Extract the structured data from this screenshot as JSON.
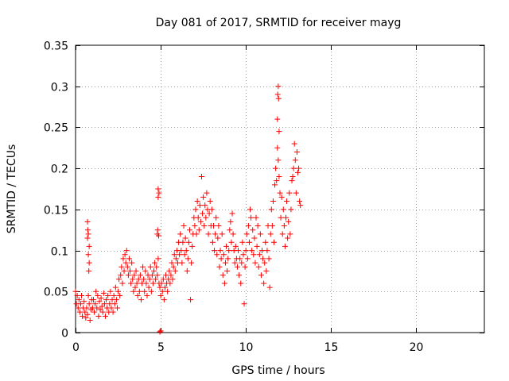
{
  "chart_data": {
    "type": "scatter",
    "title": "Day 081 of 2017, SRMTID for receiver mayg",
    "xlabel": "GPS time / hours",
    "ylabel": "SRMTID / TECUs",
    "xlim": [
      0,
      24
    ],
    "ylim": [
      0,
      0.35
    ],
    "xticks": [
      0,
      5,
      10,
      15,
      20
    ],
    "xtick_labels": [
      "0",
      "5",
      "10",
      "15",
      "20"
    ],
    "yticks": [
      0,
      0.05,
      0.1,
      0.15,
      0.2,
      0.25,
      0.3,
      0.35
    ],
    "ytick_labels": [
      "0",
      "0.05",
      "0.1",
      "0.15",
      "0.2",
      "0.25",
      "0.3",
      "0.35"
    ],
    "grid": true,
    "marker": "plus",
    "color": "#ff0000",
    "series": [
      {
        "name": "SRMTID",
        "points": [
          [
            0.0,
            0.05
          ],
          [
            0.05,
            0.035
          ],
          [
            0.1,
            0.045
          ],
          [
            0.15,
            0.03
          ],
          [
            0.2,
            0.04
          ],
          [
            0.25,
            0.025
          ],
          [
            0.3,
            0.035
          ],
          [
            0.35,
            0.045
          ],
          [
            0.4,
            0.02
          ],
          [
            0.45,
            0.03
          ],
          [
            0.5,
            0.038
          ],
          [
            0.55,
            0.025
          ],
          [
            0.6,
            0.018
          ],
          [
            0.65,
            0.03
          ],
          [
            0.7,
            0.022
          ],
          [
            0.75,
            0.045
          ],
          [
            0.8,
            0.035
          ],
          [
            0.85,
            0.015
          ],
          [
            0.9,
            0.028
          ],
          [
            0.95,
            0.04
          ],
          [
            0.7,
            0.135
          ],
          [
            0.72,
            0.125
          ],
          [
            0.75,
            0.12
          ],
          [
            0.7,
            0.115
          ],
          [
            0.75,
            0.095
          ],
          [
            0.8,
            0.085
          ],
          [
            0.78,
            0.075
          ],
          [
            0.8,
            0.105
          ],
          [
            1.0,
            0.03
          ],
          [
            1.05,
            0.04
          ],
          [
            1.1,
            0.025
          ],
          [
            1.15,
            0.035
          ],
          [
            1.2,
            0.05
          ],
          [
            1.25,
            0.03
          ],
          [
            1.3,
            0.045
          ],
          [
            1.35,
            0.02
          ],
          [
            1.4,
            0.038
          ],
          [
            1.45,
            0.028
          ],
          [
            1.5,
            0.042
          ],
          [
            1.55,
            0.032
          ],
          [
            1.6,
            0.025
          ],
          [
            1.65,
            0.048
          ],
          [
            1.7,
            0.035
          ],
          [
            1.75,
            0.02
          ],
          [
            1.8,
            0.04
          ],
          [
            1.85,
            0.03
          ],
          [
            1.9,
            0.045
          ],
          [
            1.95,
            0.025
          ],
          [
            2.0,
            0.035
          ],
          [
            2.05,
            0.05
          ],
          [
            2.1,
            0.03
          ],
          [
            2.15,
            0.04
          ],
          [
            2.2,
            0.025
          ],
          [
            2.25,
            0.045
          ],
          [
            2.3,
            0.035
          ],
          [
            2.35,
            0.055
          ],
          [
            2.4,
            0.04
          ],
          [
            2.45,
            0.03
          ],
          [
            2.5,
            0.05
          ],
          [
            2.55,
            0.065
          ],
          [
            2.6,
            0.045
          ],
          [
            2.65,
            0.07
          ],
          [
            2.7,
            0.08
          ],
          [
            2.75,
            0.06
          ],
          [
            2.8,
            0.09
          ],
          [
            2.85,
            0.075
          ],
          [
            2.9,
            0.095
          ],
          [
            2.95,
            0.085
          ],
          [
            3.0,
            0.1
          ],
          [
            3.05,
            0.08
          ],
          [
            3.1,
            0.07
          ],
          [
            3.15,
            0.09
          ],
          [
            3.2,
            0.075
          ],
          [
            3.25,
            0.06
          ],
          [
            3.3,
            0.085
          ],
          [
            3.35,
            0.065
          ],
          [
            3.4,
            0.05
          ],
          [
            3.45,
            0.07
          ],
          [
            3.5,
            0.055
          ],
          [
            3.55,
            0.075
          ],
          [
            3.6,
            0.06
          ],
          [
            3.65,
            0.045
          ],
          [
            3.7,
            0.065
          ],
          [
            3.75,
            0.05
          ],
          [
            3.8,
            0.07
          ],
          [
            3.85,
            0.04
          ],
          [
            3.9,
            0.06
          ],
          [
            3.95,
            0.08
          ],
          [
            4.0,
            0.065
          ],
          [
            4.05,
            0.05
          ],
          [
            4.1,
            0.075
          ],
          [
            4.15,
            0.06
          ],
          [
            4.2,
            0.045
          ],
          [
            4.25,
            0.07
          ],
          [
            4.3,
            0.055
          ],
          [
            4.35,
            0.065
          ],
          [
            4.4,
            0.08
          ],
          [
            4.45,
            0.05
          ],
          [
            4.5,
            0.07
          ],
          [
            4.55,
            0.06
          ],
          [
            4.6,
            0.075
          ],
          [
            4.65,
            0.085
          ],
          [
            4.7,
            0.065
          ],
          [
            4.75,
            0.08
          ],
          [
            4.8,
            0.07
          ],
          [
            4.85,
            0.09
          ],
          [
            4.9,
            0.06
          ],
          [
            4.95,
            0.055
          ],
          [
            4.85,
            0.175
          ],
          [
            4.9,
            0.17
          ],
          [
            4.85,
            0.165
          ],
          [
            4.8,
            0.12
          ],
          [
            4.82,
            0.125
          ],
          [
            4.88,
            0.118
          ],
          [
            4.95,
            0.001
          ],
          [
            5.0,
            0.002
          ],
          [
            5.0,
            0.045
          ],
          [
            5.05,
            0.06
          ],
          [
            5.1,
            0.05
          ],
          [
            5.15,
            0.065
          ],
          [
            5.2,
            0.04
          ],
          [
            5.25,
            0.055
          ],
          [
            5.3,
            0.07
          ],
          [
            5.35,
            0.06
          ],
          [
            5.4,
            0.05
          ],
          [
            5.45,
            0.065
          ],
          [
            5.5,
            0.075
          ],
          [
            5.55,
            0.06
          ],
          [
            5.6,
            0.07
          ],
          [
            5.65,
            0.085
          ],
          [
            5.7,
            0.065
          ],
          [
            5.75,
            0.08
          ],
          [
            5.8,
            0.095
          ],
          [
            5.85,
            0.075
          ],
          [
            5.9,
            0.09
          ],
          [
            5.95,
            0.1
          ],
          [
            6.0,
            0.085
          ],
          [
            6.05,
            0.11
          ],
          [
            6.1,
            0.095
          ],
          [
            6.15,
            0.12
          ],
          [
            6.2,
            0.1
          ],
          [
            6.25,
            0.085
          ],
          [
            6.3,
            0.11
          ],
          [
            6.35,
            0.13
          ],
          [
            6.4,
            0.095
          ],
          [
            6.45,
            0.115
          ],
          [
            6.5,
            0.1
          ],
          [
            6.55,
            0.075
          ],
          [
            6.6,
            0.09
          ],
          [
            6.65,
            0.11
          ],
          [
            6.7,
            0.125
          ],
          [
            6.75,
            0.04
          ],
          [
            6.8,
            0.085
          ],
          [
            6.85,
            0.105
          ],
          [
            6.9,
            0.12
          ],
          [
            6.95,
            0.14
          ],
          [
            7.0,
            0.13
          ],
          [
            7.05,
            0.15
          ],
          [
            7.1,
            0.12
          ],
          [
            7.15,
            0.16
          ],
          [
            7.2,
            0.14
          ],
          [
            7.25,
            0.125
          ],
          [
            7.3,
            0.155
          ],
          [
            7.35,
            0.135
          ],
          [
            7.4,
            0.19
          ],
          [
            7.45,
            0.145
          ],
          [
            7.5,
            0.165
          ],
          [
            7.55,
            0.13
          ],
          [
            7.6,
            0.155
          ],
          [
            7.65,
            0.14
          ],
          [
            7.7,
            0.17
          ],
          [
            7.75,
            0.15
          ],
          [
            7.8,
            0.12
          ],
          [
            7.85,
            0.145
          ],
          [
            7.9,
            0.16
          ],
          [
            7.95,
            0.13
          ],
          [
            8.0,
            0.15
          ],
          [
            8.05,
            0.11
          ],
          [
            8.1,
            0.13
          ],
          [
            8.15,
            0.1
          ],
          [
            8.2,
            0.12
          ],
          [
            8.25,
            0.14
          ],
          [
            8.3,
            0.095
          ],
          [
            8.35,
            0.115
          ],
          [
            8.4,
            0.13
          ],
          [
            8.45,
            0.08
          ],
          [
            8.5,
            0.1
          ],
          [
            8.55,
            0.09
          ],
          [
            8.6,
            0.12
          ],
          [
            8.65,
            0.07
          ],
          [
            8.7,
            0.095
          ],
          [
            8.75,
            0.06
          ],
          [
            8.8,
            0.085
          ],
          [
            8.85,
            0.105
          ],
          [
            8.9,
            0.075
          ],
          [
            8.95,
            0.09
          ],
          [
            9.0,
            0.1
          ],
          [
            9.05,
            0.125
          ],
          [
            9.1,
            0.135
          ],
          [
            9.15,
            0.11
          ],
          [
            9.2,
            0.145
          ],
          [
            9.25,
            0.12
          ],
          [
            9.3,
            0.1
          ],
          [
            9.35,
            0.085
          ],
          [
            9.4,
            0.105
          ],
          [
            9.45,
            0.09
          ],
          [
            9.5,
            0.08
          ],
          [
            9.55,
            0.1
          ],
          [
            9.6,
            0.07
          ],
          [
            9.65,
            0.09
          ],
          [
            9.7,
            0.06
          ],
          [
            9.75,
            0.085
          ],
          [
            9.8,
            0.11
          ],
          [
            9.85,
            0.095
          ],
          [
            9.9,
            0.035
          ],
          [
            9.95,
            0.08
          ],
          [
            10.0,
            0.1
          ],
          [
            10.05,
            0.12
          ],
          [
            10.1,
            0.09
          ],
          [
            10.15,
            0.13
          ],
          [
            10.2,
            0.11
          ],
          [
            10.25,
            0.15
          ],
          [
            10.3,
            0.14
          ],
          [
            10.35,
            0.1
          ],
          [
            10.4,
            0.125
          ],
          [
            10.45,
            0.095
          ],
          [
            10.5,
            0.115
          ],
          [
            10.55,
            0.085
          ],
          [
            10.6,
            0.14
          ],
          [
            10.65,
            0.105
          ],
          [
            10.7,
            0.13
          ],
          [
            10.75,
            0.08
          ],
          [
            10.8,
            0.095
          ],
          [
            10.85,
            0.12
          ],
          [
            10.9,
            0.07
          ],
          [
            10.95,
            0.1
          ],
          [
            11.0,
            0.09
          ],
          [
            11.05,
            0.06
          ],
          [
            11.1,
            0.085
          ],
          [
            11.15,
            0.11
          ],
          [
            11.2,
            0.075
          ],
          [
            11.25,
            0.1
          ],
          [
            11.3,
            0.13
          ],
          [
            11.35,
            0.09
          ],
          [
            11.4,
            0.055
          ],
          [
            11.45,
            0.12
          ],
          [
            11.5,
            0.15
          ],
          [
            11.55,
            0.13
          ],
          [
            11.6,
            0.16
          ],
          [
            11.65,
            0.11
          ],
          [
            11.7,
            0.18
          ],
          [
            11.75,
            0.2
          ],
          [
            11.8,
            0.185
          ],
          [
            11.85,
            0.26
          ],
          [
            11.87,
            0.29
          ],
          [
            11.9,
            0.3
          ],
          [
            11.92,
            0.285
          ],
          [
            11.95,
            0.245
          ],
          [
            11.85,
            0.225
          ],
          [
            11.9,
            0.21
          ],
          [
            11.95,
            0.19
          ],
          [
            12.0,
            0.17
          ],
          [
            12.05,
            0.14
          ],
          [
            12.1,
            0.165
          ],
          [
            12.15,
            0.12
          ],
          [
            12.2,
            0.15
          ],
          [
            12.25,
            0.13
          ],
          [
            12.3,
            0.105
          ],
          [
            12.35,
            0.14
          ],
          [
            12.4,
            0.16
          ],
          [
            12.45,
            0.115
          ],
          [
            12.5,
            0.135
          ],
          [
            12.55,
            0.17
          ],
          [
            12.6,
            0.12
          ],
          [
            12.65,
            0.15
          ],
          [
            12.7,
            0.185
          ],
          [
            12.75,
            0.19
          ],
          [
            12.8,
            0.2
          ],
          [
            12.85,
            0.23
          ],
          [
            12.9,
            0.21
          ],
          [
            12.95,
            0.17
          ],
          [
            13.0,
            0.22
          ],
          [
            13.05,
            0.195
          ],
          [
            13.1,
            0.2
          ],
          [
            13.15,
            0.16
          ],
          [
            13.2,
            0.155
          ]
        ]
      }
    ]
  }
}
